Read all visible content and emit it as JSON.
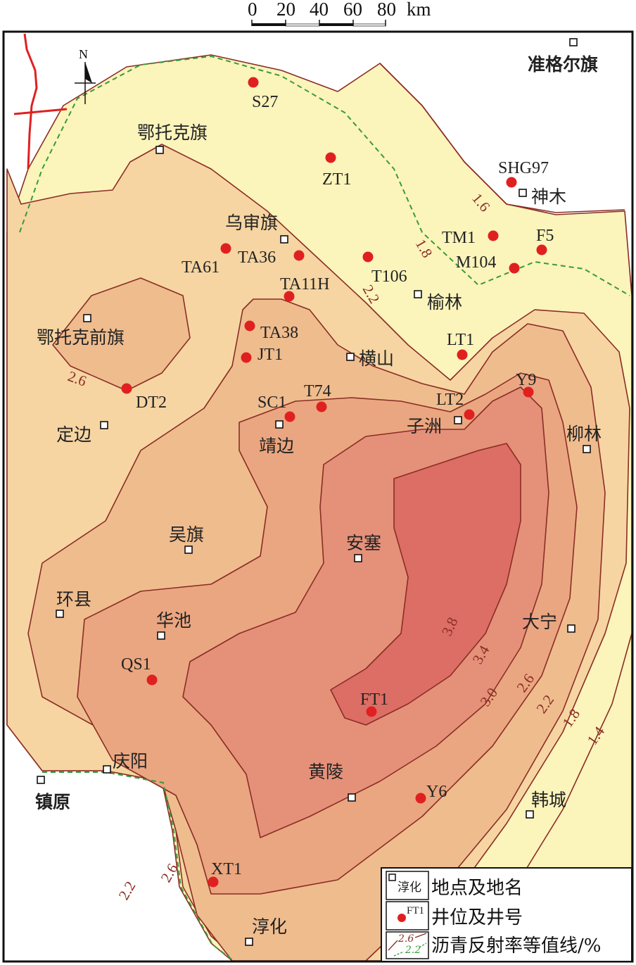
{
  "scale_bar": {
    "ticks": [
      "0",
      "20",
      "40",
      "60",
      "80"
    ],
    "unit": "km"
  },
  "north_arrow": {
    "label": "N"
  },
  "colors": {
    "zone_lt_1_8": "#fbf4bb",
    "zone_2_2": "#f6d5a2",
    "zone_2_6": "#efbc8e",
    "zone_3_0": "#eaa680",
    "zone_3_4": "#e5917a",
    "zone_3_8": "#dc6e65",
    "contour_line": "#8a2d25",
    "dashed_contour": "#3a9a3a",
    "well_dot": "#e02020",
    "boundary_line": "#e02020"
  },
  "towns": [
    {
      "name": "准格尔旗"
    },
    {
      "name": "鄂托克旗"
    },
    {
      "name": "神木"
    },
    {
      "name": "乌审旗"
    },
    {
      "name": "榆林"
    },
    {
      "name": "鄂托克前旗"
    },
    {
      "name": "横山"
    },
    {
      "name": "定边"
    },
    {
      "name": "子洲"
    },
    {
      "name": "靖边"
    },
    {
      "name": "柳林"
    },
    {
      "name": "吴旗"
    },
    {
      "name": "安塞"
    },
    {
      "name": "环县"
    },
    {
      "name": "华池"
    },
    {
      "name": "大宁"
    },
    {
      "name": "庆阳"
    },
    {
      "name": "镇原"
    },
    {
      "name": "黄陵"
    },
    {
      "name": "韩城"
    },
    {
      "name": "淳化"
    }
  ],
  "wells": [
    {
      "id": "S27"
    },
    {
      "id": "ZT1"
    },
    {
      "id": "SHG97"
    },
    {
      "id": "TM1"
    },
    {
      "id": "F5"
    },
    {
      "id": "M104"
    },
    {
      "id": "TA61"
    },
    {
      "id": "TA36"
    },
    {
      "id": "T106"
    },
    {
      "id": "TA11H"
    },
    {
      "id": "TA38"
    },
    {
      "id": "JT1"
    },
    {
      "id": "LT1"
    },
    {
      "id": "DT2"
    },
    {
      "id": "SC1"
    },
    {
      "id": "T74"
    },
    {
      "id": "LT2"
    },
    {
      "id": "Y9"
    },
    {
      "id": "QS1"
    },
    {
      "id": "FT1"
    },
    {
      "id": "Y6"
    },
    {
      "id": "XT1"
    }
  ],
  "contour_labels": [
    "1.6",
    "1.8",
    "2.2",
    "2.6",
    "3.8",
    "3.4",
    "3.0",
    "2.6",
    "2.2",
    "1.8",
    "1.4",
    "2.2",
    "2.6"
  ],
  "legend": {
    "items": [
      {
        "sample": "淳化",
        "label": "地点及地名"
      },
      {
        "sample": "FT1",
        "label": "井位及井号"
      },
      {
        "sample_a": "2.6",
        "sample_b": "2.2",
        "label": "沥青反射率等值线/%"
      }
    ]
  }
}
